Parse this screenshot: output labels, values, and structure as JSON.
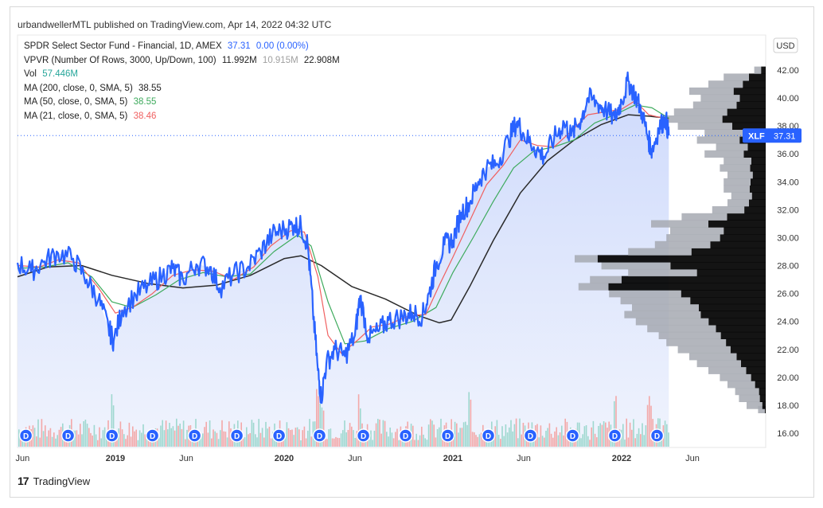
{
  "header": {
    "published": "urbandwellerMTL published on TradingView.com, Apr 14, 2022 04:32 UTC"
  },
  "legend": {
    "line1_label": "SPDR Select Sector Fund - Financial, 1D, AMEX",
    "line1_price": "37.31",
    "line1_change": "0.00 (0.00%)",
    "line2_label": "VPVR (Number Of Rows, 3000, Up/Down, 100)",
    "line2_v1": "11.992M",
    "line2_v2": "10.915M",
    "line2_v3": "22.908M",
    "line3_label": "Vol",
    "line3_value": "57.446M",
    "line4_label": "MA (200, close, 0, SMA, 5)",
    "line4_value": "38.55",
    "line5_label": "MA (50, close, 0, SMA, 5)",
    "line5_value": "38.55",
    "line6_label": "MA (21, close, 0, SMA, 5)",
    "line6_value": "38.46"
  },
  "currency": "USD",
  "ticker_badge": {
    "symbol": "XLF",
    "price": "37.31"
  },
  "footer": {
    "brand": "TradingView"
  },
  "chart_data": {
    "type": "line",
    "title": "SPDR Select Sector Fund - Financial, 1D, AMEX",
    "xlabel": "",
    "ylabel": "USD",
    "ylim": [
      15,
      43
    ],
    "y_ticks": [
      "16.00",
      "18.00",
      "20.00",
      "22.00",
      "24.00",
      "26.00",
      "28.00",
      "30.00",
      "32.00",
      "34.00",
      "36.00",
      "38.00",
      "40.00",
      "42.00"
    ],
    "x_range": [
      2018.42,
      2022.42
    ],
    "x_ticks": [
      {
        "label": "Jun",
        "t": 2018.45
      },
      {
        "label": "2019",
        "t": 2019.0
      },
      {
        "label": "Jun",
        "t": 2019.42
      },
      {
        "label": "2020",
        "t": 2020.0
      },
      {
        "label": "Jun",
        "t": 2020.42
      },
      {
        "label": "2021",
        "t": 2021.0
      },
      {
        "label": "Jun",
        "t": 2021.42
      },
      {
        "label": "2022",
        "t": 2022.0
      },
      {
        "label": "Jun",
        "t": 2022.42
      }
    ],
    "current_price": 37.31,
    "series": [
      {
        "name": "XLF close",
        "color": "#2962ff",
        "points": [
          [
            2018.42,
            28.2
          ],
          [
            2018.5,
            27.6
          ],
          [
            2018.58,
            28.3
          ],
          [
            2018.66,
            28.9
          ],
          [
            2018.75,
            28.5
          ],
          [
            2018.83,
            27.0
          ],
          [
            2018.9,
            25.6
          ],
          [
            2018.96,
            23.5
          ],
          [
            2018.99,
            22.6
          ],
          [
            2019.04,
            24.8
          ],
          [
            2019.12,
            25.9
          ],
          [
            2019.2,
            26.6
          ],
          [
            2019.28,
            27.3
          ],
          [
            2019.34,
            27.8
          ],
          [
            2019.4,
            27.0
          ],
          [
            2019.48,
            28.1
          ],
          [
            2019.56,
            27.9
          ],
          [
            2019.62,
            26.4
          ],
          [
            2019.7,
            27.4
          ],
          [
            2019.78,
            27.8
          ],
          [
            2019.86,
            29.0
          ],
          [
            2019.93,
            30.2
          ],
          [
            2020.0,
            30.6
          ],
          [
            2020.06,
            30.9
          ],
          [
            2020.1,
            30.8
          ],
          [
            2020.14,
            29.5
          ],
          [
            2020.17,
            25.0
          ],
          [
            2020.2,
            20.5
          ],
          [
            2020.22,
            18.5
          ],
          [
            2020.25,
            21.0
          ],
          [
            2020.3,
            22.0
          ],
          [
            2020.36,
            21.5
          ],
          [
            2020.42,
            23.0
          ],
          [
            2020.45,
            25.8
          ],
          [
            2020.5,
            22.8
          ],
          [
            2020.56,
            23.3
          ],
          [
            2020.62,
            24.1
          ],
          [
            2020.7,
            24.3
          ],
          [
            2020.76,
            24.6
          ],
          [
            2020.82,
            24.4
          ],
          [
            2020.86,
            26.0
          ],
          [
            2020.9,
            28.0
          ],
          [
            2020.95,
            29.5
          ],
          [
            2021.0,
            29.8
          ],
          [
            2021.05,
            31.8
          ],
          [
            2021.1,
            32.5
          ],
          [
            2021.15,
            34.0
          ],
          [
            2021.2,
            35.0
          ],
          [
            2021.26,
            35.3
          ],
          [
            2021.33,
            37.0
          ],
          [
            2021.38,
            38.3
          ],
          [
            2021.42,
            37.4
          ],
          [
            2021.48,
            36.5
          ],
          [
            2021.54,
            35.8
          ],
          [
            2021.6,
            37.1
          ],
          [
            2021.66,
            38.2
          ],
          [
            2021.7,
            37.3
          ],
          [
            2021.76,
            38.5
          ],
          [
            2021.8,
            40.0
          ],
          [
            2021.86,
            39.6
          ],
          [
            2021.9,
            39.2
          ],
          [
            2021.96,
            38.5
          ],
          [
            2022.0,
            39.8
          ],
          [
            2022.04,
            41.2
          ],
          [
            2022.08,
            40.2
          ],
          [
            2022.12,
            39.0
          ],
          [
            2022.16,
            37.0
          ],
          [
            2022.18,
            36.2
          ],
          [
            2022.22,
            37.8
          ],
          [
            2022.26,
            38.6
          ],
          [
            2022.28,
            37.31
          ]
        ]
      },
      {
        "name": "MA 21",
        "color": "#f06060",
        "points": [
          [
            2018.42,
            28.0
          ],
          [
            2018.55,
            27.9
          ],
          [
            2018.66,
            28.4
          ],
          [
            2018.78,
            28.2
          ],
          [
            2018.9,
            26.4
          ],
          [
            2019.0,
            24.6
          ],
          [
            2019.1,
            25.0
          ],
          [
            2019.22,
            26.0
          ],
          [
            2019.34,
            27.3
          ],
          [
            2019.46,
            27.7
          ],
          [
            2019.58,
            27.6
          ],
          [
            2019.7,
            27.0
          ],
          [
            2019.82,
            27.9
          ],
          [
            2019.92,
            29.4
          ],
          [
            2020.04,
            30.5
          ],
          [
            2020.12,
            30.4
          ],
          [
            2020.2,
            27.2
          ],
          [
            2020.26,
            23.0
          ],
          [
            2020.34,
            21.7
          ],
          [
            2020.44,
            22.7
          ],
          [
            2020.52,
            23.6
          ],
          [
            2020.62,
            23.8
          ],
          [
            2020.74,
            24.4
          ],
          [
            2020.84,
            24.5
          ],
          [
            2020.92,
            26.6
          ],
          [
            2021.0,
            28.6
          ],
          [
            2021.1,
            31.2
          ],
          [
            2021.2,
            33.8
          ],
          [
            2021.3,
            35.2
          ],
          [
            2021.4,
            37.0
          ],
          [
            2021.5,
            36.6
          ],
          [
            2021.6,
            36.5
          ],
          [
            2021.7,
            37.6
          ],
          [
            2021.8,
            38.8
          ],
          [
            2021.9,
            39.0
          ],
          [
            2022.0,
            39.2
          ],
          [
            2022.08,
            39.8
          ],
          [
            2022.16,
            38.8
          ],
          [
            2022.28,
            38.46
          ]
        ]
      },
      {
        "name": "MA 50",
        "color": "#3daa5c",
        "points": [
          [
            2018.42,
            27.8
          ],
          [
            2018.58,
            27.9
          ],
          [
            2018.72,
            28.2
          ],
          [
            2018.86,
            27.2
          ],
          [
            2018.98,
            25.4
          ],
          [
            2019.1,
            25.0
          ],
          [
            2019.24,
            25.9
          ],
          [
            2019.38,
            27.0
          ],
          [
            2019.52,
            27.5
          ],
          [
            2019.66,
            27.2
          ],
          [
            2019.8,
            27.4
          ],
          [
            2019.94,
            29.0
          ],
          [
            2020.08,
            30.2
          ],
          [
            2020.16,
            29.4
          ],
          [
            2020.26,
            25.4
          ],
          [
            2020.36,
            22.4
          ],
          [
            2020.48,
            22.6
          ],
          [
            2020.62,
            23.5
          ],
          [
            2020.76,
            24.0
          ],
          [
            2020.9,
            25.0
          ],
          [
            2021.0,
            27.5
          ],
          [
            2021.12,
            30.0
          ],
          [
            2021.24,
            32.6
          ],
          [
            2021.36,
            35.0
          ],
          [
            2021.48,
            36.2
          ],
          [
            2021.6,
            36.5
          ],
          [
            2021.72,
            37.0
          ],
          [
            2021.84,
            38.2
          ],
          [
            2021.96,
            38.8
          ],
          [
            2022.08,
            39.5
          ],
          [
            2022.18,
            39.3
          ],
          [
            2022.28,
            38.55
          ]
        ]
      },
      {
        "name": "MA 200",
        "color": "#2a2a2a",
        "points": [
          [
            2018.42,
            27.2
          ],
          [
            2018.6,
            27.9
          ],
          [
            2018.8,
            28.0
          ],
          [
            2018.98,
            27.3
          ],
          [
            2019.2,
            26.7
          ],
          [
            2019.4,
            26.4
          ],
          [
            2019.6,
            26.6
          ],
          [
            2019.8,
            27.3
          ],
          [
            2020.0,
            28.5
          ],
          [
            2020.1,
            28.7
          ],
          [
            2020.22,
            28.0
          ],
          [
            2020.4,
            26.5
          ],
          [
            2020.6,
            25.6
          ],
          [
            2020.8,
            24.4
          ],
          [
            2020.92,
            23.9
          ],
          [
            2020.99,
            24.1
          ],
          [
            2021.1,
            26.5
          ],
          [
            2021.24,
            29.8
          ],
          [
            2021.4,
            33.2
          ],
          [
            2021.56,
            35.5
          ],
          [
            2021.72,
            37.0
          ],
          [
            2021.88,
            38.1
          ],
          [
            2022.04,
            38.8
          ],
          [
            2022.16,
            38.7
          ],
          [
            2022.28,
            38.55
          ]
        ]
      }
    ],
    "volume_profile": {
      "price_levels": [
        17.7,
        18.0,
        18.5,
        19.0,
        19.5,
        20.0,
        20.5,
        21.0,
        21.5,
        22.0,
        22.5,
        23.0,
        23.5,
        24.0,
        24.5,
        25.0,
        25.5,
        26.0,
        26.5,
        27.0,
        27.5,
        28.0,
        28.5,
        29.0,
        29.5,
        30.0,
        30.5,
        31.0,
        31.5,
        32.0,
        32.5,
        33.0,
        33.5,
        34.0,
        34.5,
        35.0,
        35.5,
        36.0,
        36.5,
        37.0,
        37.5,
        38.0,
        38.5,
        39.0,
        39.5,
        40.0,
        40.5,
        41.0,
        41.5,
        42.0
      ],
      "volume_pct": [
        4,
        10,
        14,
        16,
        20,
        24,
        30,
        36,
        40,
        46,
        52,
        56,
        62,
        68,
        74,
        70,
        76,
        82,
        98,
        92,
        72,
        86,
        100,
        72,
        58,
        52,
        50,
        60,
        44,
        28,
        20,
        18,
        22,
        22,
        20,
        24,
        22,
        32,
        26,
        36,
        32,
        46,
        54,
        48,
        38,
        34,
        40,
        30,
        22,
        6
      ],
      "up_share": [
        0.1,
        0.18,
        0.22,
        0.22,
        0.28,
        0.32,
        0.34,
        0.36,
        0.38,
        0.4,
        0.4,
        0.42,
        0.42,
        0.44,
        0.46,
        0.5,
        0.52,
        0.54,
        0.84,
        0.82,
        0.5,
        0.58,
        0.88,
        0.54,
        0.5,
        0.46,
        0.44,
        0.5,
        0.46,
        0.4,
        0.44,
        0.4,
        0.38,
        0.36,
        0.34,
        0.34,
        0.34,
        0.36,
        0.36,
        0.38,
        0.36,
        0.38,
        0.42,
        0.42,
        0.4,
        0.4,
        0.42,
        0.4,
        0.4,
        0.4
      ]
    },
    "volume_bars": {
      "dividend_marker_label": "D",
      "dividend_dates": [
        2018.47,
        2018.72,
        2018.98,
        2019.22,
        2019.47,
        2019.72,
        2019.97,
        2020.21,
        2020.47,
        2020.72,
        2020.97,
        2021.21,
        2021.46,
        2021.71,
        2021.96,
        2022.21
      ],
      "spike_dates": [
        2018.98,
        2020.2,
        2020.22,
        2020.44,
        2021.1,
        2021.96,
        2022.16
      ],
      "max_volume_pct": 100
    }
  }
}
